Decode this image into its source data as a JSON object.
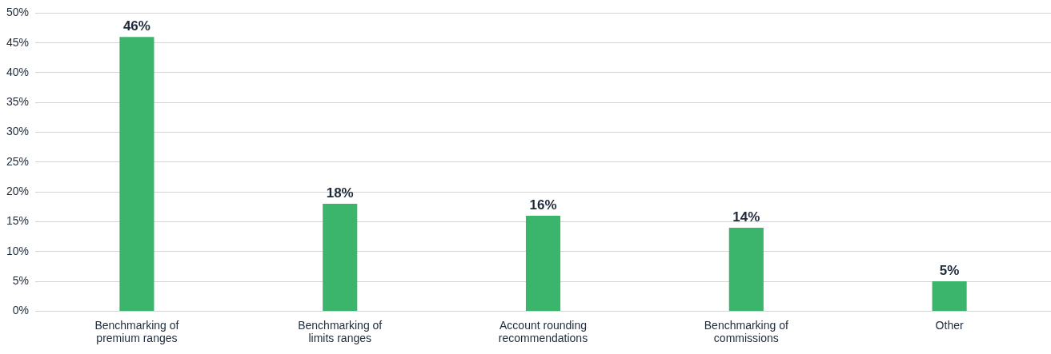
{
  "chart_data": {
    "type": "bar",
    "categories": [
      "Benchmarking of premium ranges",
      "Benchmarking of limits ranges",
      "Account rounding recommendations",
      "Benchmarking of commissions",
      "Other"
    ],
    "values": [
      46,
      18,
      16,
      14,
      5
    ],
    "color": "#3cb56c",
    "ylim": [
      0,
      50
    ],
    "yticks": [
      {
        "value": 0,
        "label": "0%"
      },
      {
        "value": 5,
        "label": "5%"
      },
      {
        "value": 10,
        "label": "10%"
      },
      {
        "value": 15,
        "label": "15%"
      },
      {
        "value": 20,
        "label": "20%"
      },
      {
        "value": 25,
        "label": "25%"
      },
      {
        "value": 30,
        "label": "30%"
      },
      {
        "value": 35,
        "label": "35%"
      },
      {
        "value": 40,
        "label": "40%"
      },
      {
        "value": 45,
        "label": "45%"
      },
      {
        "value": 50,
        "label": "50%"
      }
    ],
    "value_labels": [
      "46%",
      "18%",
      "16%",
      "14%",
      "5%"
    ],
    "grid": "y",
    "legend": false
  }
}
